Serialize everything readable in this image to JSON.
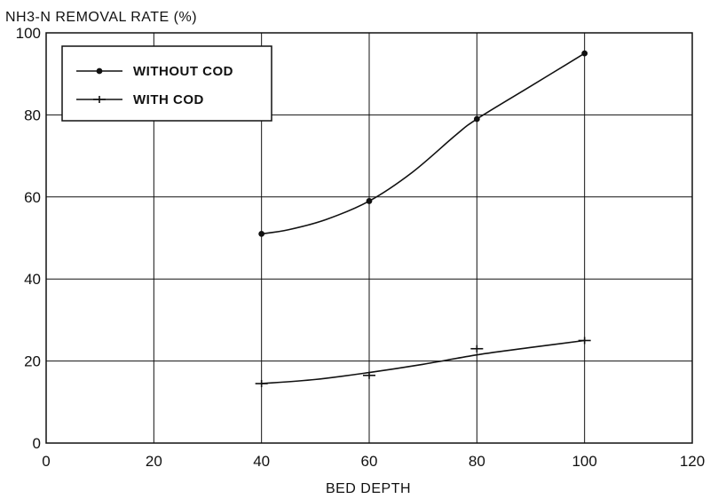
{
  "chart_data": {
    "type": "line",
    "ylabel": "NH3-N REMOVAL RATE (%)",
    "xlabel": "BED DEPTH",
    "xlim": [
      0,
      120
    ],
    "ylim": [
      0,
      100
    ],
    "x_ticks": [
      0,
      20,
      40,
      60,
      80,
      100,
      120
    ],
    "y_ticks": [
      0,
      20,
      40,
      60,
      80,
      100
    ],
    "grid": true,
    "legend_position": "top-left",
    "series": [
      {
        "name": "WITHOUT COD",
        "marker": "dot",
        "points": [
          [
            40,
            51
          ],
          [
            45,
            52
          ],
          [
            52,
            54.5
          ],
          [
            60,
            59
          ],
          [
            68,
            66
          ],
          [
            76,
            75
          ],
          [
            80,
            79
          ],
          [
            90,
            87
          ],
          [
            100,
            95
          ]
        ],
        "markers": [
          [
            40,
            51
          ],
          [
            60,
            59
          ],
          [
            80,
            79
          ],
          [
            100,
            95
          ]
        ]
      },
      {
        "name": "WITH COD",
        "marker": "plus",
        "points": [
          [
            40,
            14.5
          ],
          [
            50,
            15.5
          ],
          [
            60,
            17.2
          ],
          [
            70,
            19.2
          ],
          [
            80,
            21.5
          ],
          [
            90,
            23.3
          ],
          [
            100,
            25
          ]
        ],
        "markers": [
          [
            40,
            14.5
          ],
          [
            60,
            16.5
          ],
          [
            80,
            23
          ],
          [
            100,
            25
          ]
        ]
      }
    ]
  }
}
